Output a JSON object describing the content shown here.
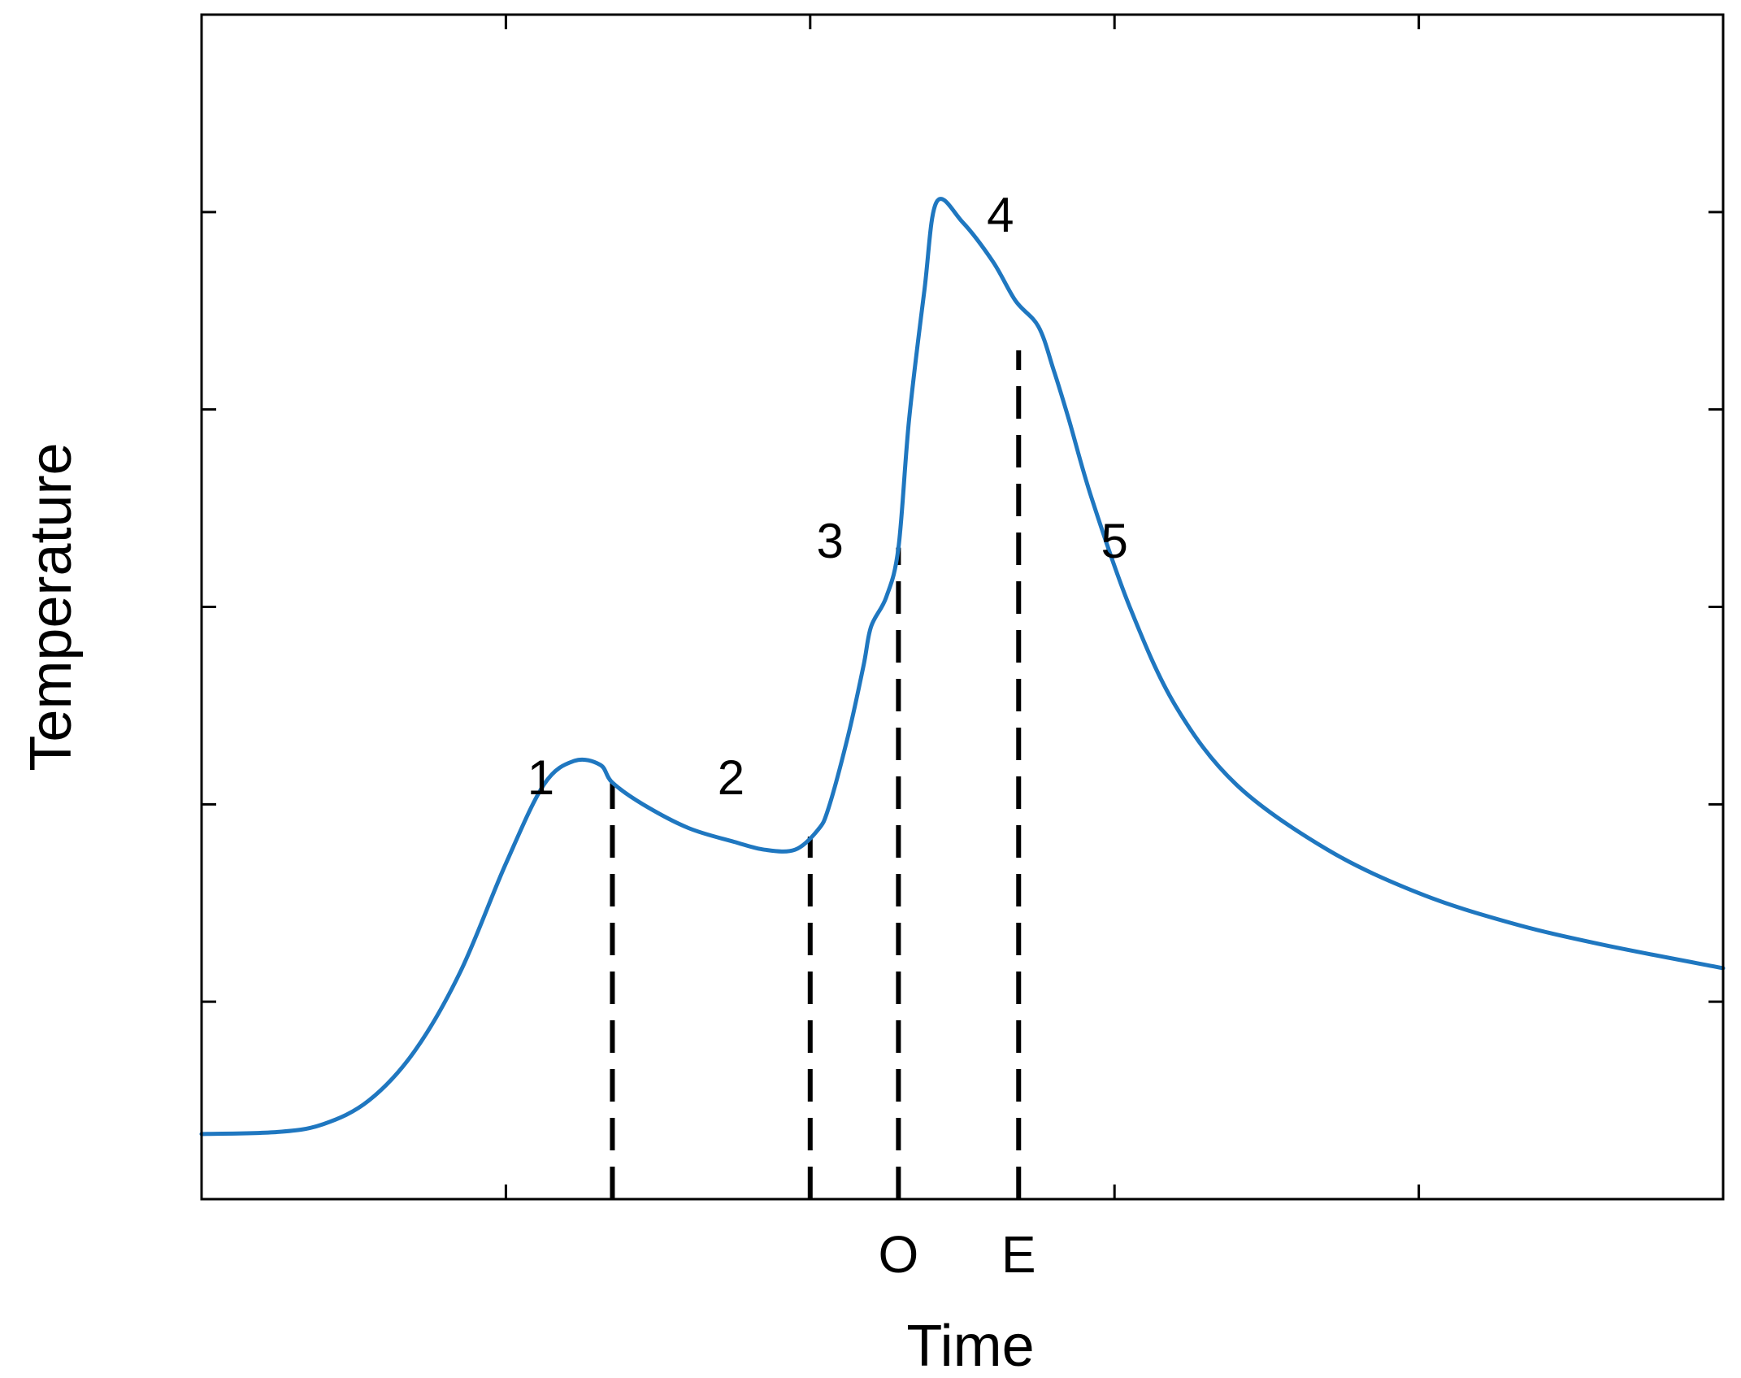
{
  "chart_data": {
    "type": "line",
    "title": "",
    "xlabel": "Time",
    "ylabel": "Temperature",
    "xlim": [
      0,
      100
    ],
    "ylim": [
      0,
      6
    ],
    "x_tick_values": [
      20,
      40,
      60,
      80
    ],
    "y_tick_values": [
      1,
      2,
      3,
      4,
      5
    ],
    "tick_labels_shown": false,
    "grid": false,
    "box": true,
    "line_color": "#1f77c0",
    "series": [
      {
        "values": [
          [
            0,
            0.33
          ],
          [
            5,
            0.34
          ],
          [
            8,
            0.38
          ],
          [
            11,
            0.5
          ],
          [
            14,
            0.75
          ],
          [
            17,
            1.15
          ],
          [
            20,
            1.7
          ],
          [
            22.5,
            2.1
          ],
          [
            24.5,
            2.22
          ],
          [
            26.2,
            2.2
          ],
          [
            27,
            2.11
          ],
          [
            29,
            2.0
          ],
          [
            32,
            1.88
          ],
          [
            35,
            1.81
          ],
          [
            37,
            1.77
          ],
          [
            39,
            1.77
          ],
          [
            40.5,
            1.87
          ],
          [
            41.2,
            1.98
          ],
          [
            42.5,
            2.35
          ],
          [
            43.5,
            2.7
          ],
          [
            44,
            2.9
          ],
          [
            45,
            3.05
          ],
          [
            45.8,
            3.3
          ],
          [
            46.5,
            3.95
          ],
          [
            47.5,
            4.6
          ],
          [
            48.3,
            5.05
          ],
          [
            50,
            4.95
          ],
          [
            52,
            4.75
          ],
          [
            53.5,
            4.55
          ],
          [
            55,
            4.42
          ],
          [
            56,
            4.2
          ],
          [
            57,
            3.95
          ],
          [
            58.5,
            3.55
          ],
          [
            61,
            3.0
          ],
          [
            64,
            2.5
          ],
          [
            68,
            2.1
          ],
          [
            74,
            1.77
          ],
          [
            80,
            1.55
          ],
          [
            86,
            1.4
          ],
          [
            92,
            1.29
          ],
          [
            100,
            1.17
          ]
        ]
      }
    ],
    "vertical_markers": [
      {
        "x": 27,
        "label": ""
      },
      {
        "x": 40,
        "label": ""
      },
      {
        "x": 45.8,
        "label": "O"
      },
      {
        "x": 53.7,
        "label": "E"
      }
    ],
    "phase_labels": [
      {
        "text": "1",
        "x": 22.3,
        "y": 2.05
      },
      {
        "text": "2",
        "x": 34.8,
        "y": 2.05
      },
      {
        "text": "3",
        "x": 41.3,
        "y": 3.25
      },
      {
        "text": "4",
        "x": 52.5,
        "y": 4.9
      },
      {
        "text": "5",
        "x": 60,
        "y": 3.25
      }
    ]
  }
}
